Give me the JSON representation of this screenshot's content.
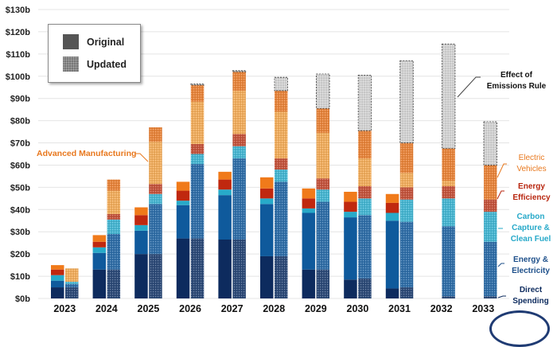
{
  "chart_data": {
    "type": "bar",
    "stacked": true,
    "grouped": true,
    "title": "",
    "xlabel": "",
    "ylabel": "",
    "ylim": [
      0,
      130
    ],
    "y_ticks": [
      "$0b",
      "$10b",
      "$20b",
      "$30b",
      "$40b",
      "$50b",
      "$60b",
      "$70b",
      "$80b",
      "$90b",
      "$100b",
      "$110b",
      "$120b",
      "$130b"
    ],
    "y_tick_values": [
      0,
      10,
      20,
      30,
      40,
      50,
      60,
      70,
      80,
      90,
      100,
      110,
      120,
      130
    ],
    "grid": true,
    "categories": [
      "2023",
      "2024",
      "2025",
      "2026",
      "2027",
      "2028",
      "2029",
      "2030",
      "2031",
      "2032",
      "2033"
    ],
    "groups": [
      "Original",
      "Updated"
    ],
    "segments": [
      "Direct Spending",
      "Energy & Electricity",
      "Carbon Capture & Clean Fuel",
      "Energy Efficiency",
      "Advanced Manufacturing",
      "Electric Vehicles",
      "Effect of Emissions Rule"
    ],
    "colors": {
      "Direct Spending": "#0d2b5e",
      "Energy & Electricity": "#0f5a9c",
      "Carbon Capture & Clean Fuel": "#27aac9",
      "Energy Efficiency": "#c0280f",
      "Advanced Manufacturing": "#f59a2e",
      "Electric Vehicles": "#f07a1a",
      "Effect of Emissions Rule": "#d4d4d4"
    },
    "updated_colors": {
      "Direct Spending": "#2c4a78",
      "Energy & Electricity": "#2f6ea8",
      "Carbon Capture & Clean Fuel": "#45b6d2",
      "Energy Efficiency": "#c4533c",
      "Advanced Manufacturing": "#f2ad5c",
      "Electric Vehicles": "#e8843a",
      "Effect of Emissions Rule": "#d4d4d4"
    },
    "series": [
      {
        "name": "Direct Spending",
        "group": "Original",
        "values": [
          5,
          13,
          20,
          27,
          26.5,
          19,
          13,
          8.5,
          4.5,
          null,
          null
        ]
      },
      {
        "name": "Energy & Electricity",
        "group": "Original",
        "values": [
          3,
          7.5,
          10.5,
          15,
          20,
          23.5,
          25.5,
          28,
          30.5,
          null,
          null
        ]
      },
      {
        "name": "Carbon Capture & Clean Fuel",
        "group": "Original",
        "values": [
          2.5,
          2.5,
          2.5,
          2,
          2.5,
          2.5,
          2,
          2.5,
          3.5,
          null,
          null
        ]
      },
      {
        "name": "Energy Efficiency",
        "group": "Original",
        "values": [
          2.5,
          2.5,
          4.5,
          4.5,
          4.5,
          4.5,
          4.5,
          4.5,
          4.5,
          null,
          null
        ]
      },
      {
        "name": "Advanced Manufacturing",
        "group": "Original",
        "values": [
          0,
          0,
          0,
          0,
          0,
          0,
          0,
          0,
          0,
          null,
          null
        ]
      },
      {
        "name": "Electric Vehicles",
        "group": "Original",
        "values": [
          2,
          3,
          3.5,
          4,
          3.5,
          5,
          4.5,
          4.5,
          4,
          null,
          null
        ]
      },
      {
        "name": "Direct Spending",
        "group": "Updated",
        "values": [
          5,
          13,
          20,
          27,
          26.5,
          19,
          13,
          9,
          5,
          1,
          1
        ]
      },
      {
        "name": "Energy & Electricity",
        "group": "Updated",
        "values": [
          1.5,
          16,
          22.5,
          33.5,
          36.5,
          33.5,
          30.5,
          28.5,
          29.5,
          31.5,
          24.5
        ]
      },
      {
        "name": "Carbon Capture & Clean Fuel",
        "group": "Updated",
        "values": [
          1,
          6.5,
          4.5,
          4.5,
          5.5,
          5.5,
          5.5,
          7.5,
          10,
          12.5,
          13.5
        ]
      },
      {
        "name": "Energy Efficiency",
        "group": "Updated",
        "values": [
          0,
          2.5,
          4.5,
          4.5,
          5.5,
          5,
          5,
          5.5,
          5.5,
          5.5,
          5.5
        ]
      },
      {
        "name": "Advanced Manufacturing",
        "group": "Updated",
        "values": [
          6,
          10.5,
          19,
          19,
          19.5,
          21,
          20.5,
          12.5,
          6.5,
          2.5,
          0
        ]
      },
      {
        "name": "Electric Vehicles",
        "group": "Updated",
        "values": [
          0,
          5,
          6.5,
          7.5,
          8.5,
          9.5,
          11,
          12.5,
          13.5,
          14.5,
          15.5
        ]
      },
      {
        "name": "Effect of Emissions Rule",
        "group": "Updated",
        "values": [
          0,
          0,
          0,
          0.5,
          0.5,
          6,
          15.5,
          25,
          37,
          47,
          19.5
        ]
      }
    ],
    "legend": {
      "position": "top-left",
      "entries": [
        "Original",
        "Updated"
      ]
    },
    "annotations": [
      {
        "text": "Advanced Manufacturing",
        "color": "#e8781e",
        "target": "2025 Updated Advanced Manufacturing"
      },
      {
        "text": "Effect of Emissions Rule",
        "color": "#111111",
        "target": "2032 Updated Effect of Emissions Rule"
      },
      {
        "text": "Electric Vehicles",
        "color": "#e8781e",
        "target": "2033 Updated Electric Vehicles"
      },
      {
        "text": "Energy Efficiency",
        "color": "#b8260f",
        "target": "2033 Updated Energy Efficiency"
      },
      {
        "text": "Carbon Capture & Clean Fuel",
        "color": "#27a9c9",
        "target": "2033 Updated Carbon Capture"
      },
      {
        "text": "Energy & Electricity",
        "color": "#1d4f8a",
        "target": "2033 Updated Energy & Electricity"
      },
      {
        "text": "Direct Spending",
        "color": "#0d2b5e",
        "target": "2033 Updated Direct Spending"
      }
    ]
  },
  "legend": {
    "original_label": "Original",
    "updated_label": "Updated"
  },
  "annotations": {
    "adv_mfg": "Advanced Manufacturing",
    "emissions_1": "Effect of",
    "emissions_2": "Emissions Rule",
    "ev_1": "Electric",
    "ev_2": "Vehicles",
    "ee_1": "Energy",
    "ee_2": "Efficiency",
    "cc_1": "Carbon",
    "cc_2": "Capture &",
    "cc_3": "Clean Fuel",
    "ee2_1": "Energy &",
    "ee2_2": "Electricity",
    "ds_1": "Direct",
    "ds_2": "Spending"
  }
}
